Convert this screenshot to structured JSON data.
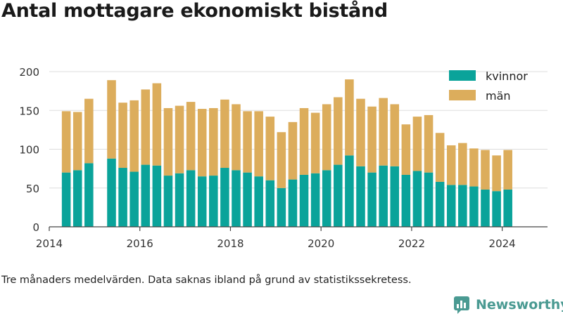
{
  "title": "Antal mottagare ekonomiskt bistånd",
  "note": "Tre månaders medelvärden. Data saknas ibland på grund av statistikssekretess.",
  "brand": {
    "name": "Newsworthy",
    "icon": "newsworthy-logo-icon",
    "color": "#4a9a92"
  },
  "chart_data": {
    "type": "bar",
    "stacked": true,
    "ylim": [
      0,
      200
    ],
    "yticks": [
      0,
      50,
      100,
      150,
      200
    ],
    "xlim": [
      2014.0,
      2025.0
    ],
    "xticks": [
      2014,
      2016,
      2018,
      2020,
      2022,
      2024
    ],
    "grid": "horizontal",
    "legend_position": "top-right",
    "x": [
      2014.375,
      2014.625,
      2014.875,
      2015.375,
      2015.625,
      2015.875,
      2016.125,
      2016.375,
      2016.625,
      2016.875,
      2017.125,
      2017.375,
      2017.625,
      2017.875,
      2018.125,
      2018.375,
      2018.625,
      2018.875,
      2019.125,
      2019.375,
      2019.625,
      2019.875,
      2020.125,
      2020.375,
      2020.625,
      2020.875,
      2021.125,
      2021.375,
      2021.625,
      2021.875,
      2022.125,
      2022.375,
      2022.625,
      2022.875,
      2023.125,
      2023.375,
      2023.625,
      2023.875,
      2024.125
    ],
    "series": [
      {
        "name": "kvinnor",
        "color": "#0aa39a",
        "values": [
          70,
          73,
          82,
          88,
          76,
          71,
          80,
          79,
          66,
          69,
          73,
          65,
          66,
          76,
          73,
          70,
          65,
          60,
          50,
          61,
          67,
          69,
          73,
          80,
          92,
          78,
          70,
          79,
          78,
          67,
          72,
          70,
          58,
          54,
          54,
          52,
          48,
          46,
          48
        ]
      },
      {
        "name": "män",
        "color": "#dcad5c",
        "values": [
          79,
          75,
          83,
          101,
          84,
          92,
          97,
          106,
          87,
          87,
          88,
          87,
          87,
          88,
          85,
          79,
          84,
          82,
          72,
          74,
          86,
          78,
          85,
          87,
          98,
          87,
          85,
          87,
          80,
          65,
          70,
          74,
          63,
          51,
          54,
          49,
          51,
          46,
          51
        ]
      }
    ]
  }
}
